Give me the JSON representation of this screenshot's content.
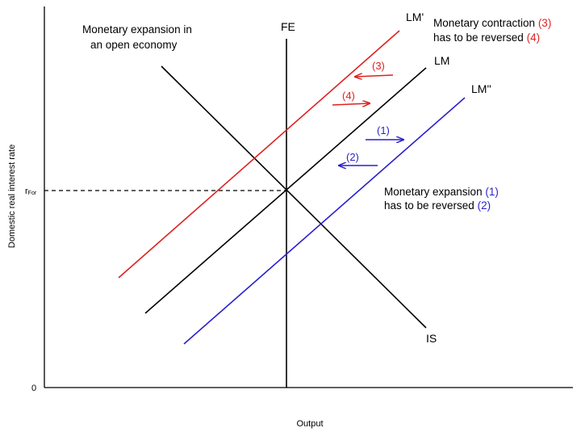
{
  "title": {
    "line1": "Monetary expansion in",
    "line2": "an open economy"
  },
  "axes": {
    "xlabel": "Output",
    "ylabel": "Domestic real interest rate",
    "origin": "0",
    "r_for": "r",
    "r_for_sub": "For"
  },
  "curves": {
    "fe": "FE",
    "lm": "LM",
    "lm_prime": "LM'",
    "lm_double_prime": "LM''",
    "is": "IS"
  },
  "arrows": {
    "a1": "(1)",
    "a2": "(2)",
    "a3": "(3)",
    "a4": "(4)"
  },
  "annotations": {
    "contraction_text": "Monetary contraction ",
    "contraction_num": "(3)",
    "contraction_line2": "has to be reversed ",
    "contraction_line2_num": "(4)",
    "expansion_text": "Monetary expansion ",
    "expansion_num": "(1)",
    "expansion_line2": "has to be reversed ",
    "expansion_line2_num": "(2)"
  },
  "colors": {
    "black": "#000000",
    "red": "#dd2222",
    "blue": "#2a1fcc"
  }
}
